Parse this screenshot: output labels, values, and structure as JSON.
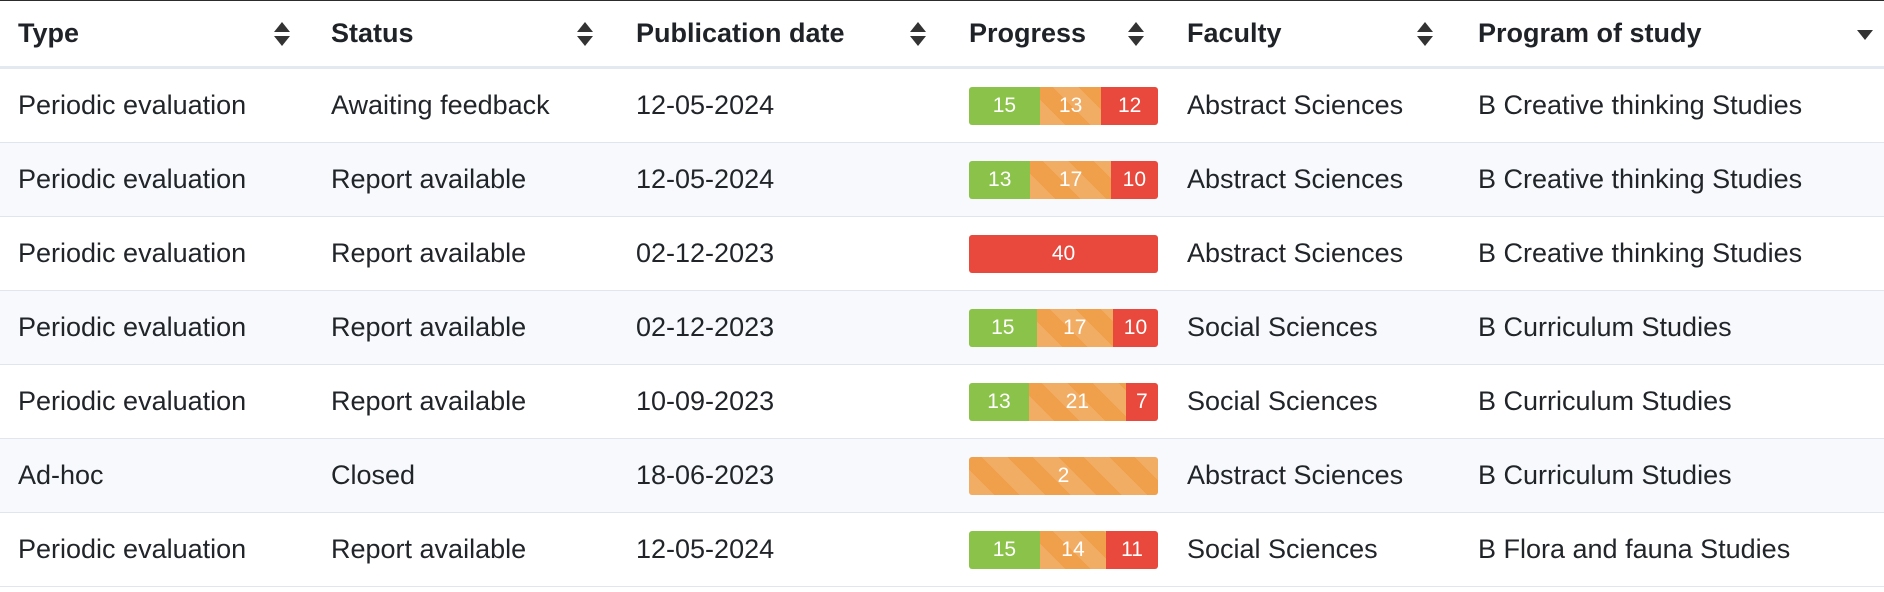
{
  "table": {
    "columns": [
      {
        "label": "Type",
        "sort": "both"
      },
      {
        "label": "Status",
        "sort": "both"
      },
      {
        "label": "Publication date",
        "sort": "both"
      },
      {
        "label": "Progress",
        "sort": "both"
      },
      {
        "label": "Faculty",
        "sort": "both"
      },
      {
        "label": "Program of study",
        "sort": "desc"
      }
    ],
    "rows": [
      {
        "type": "Periodic evaluation",
        "status": "Awaiting feedback",
        "date": "12-05-2024",
        "progress": {
          "green": 15,
          "orange": 13,
          "red": 12
        },
        "faculty": "Abstract Sciences",
        "program": "B Creative thinking Studies"
      },
      {
        "type": "Periodic evaluation",
        "status": "Report available",
        "date": "12-05-2024",
        "progress": {
          "green": 13,
          "orange": 17,
          "red": 10
        },
        "faculty": "Abstract Sciences",
        "program": "B Creative thinking Studies"
      },
      {
        "type": "Periodic evaluation",
        "status": "Report available",
        "date": "02-12-2023",
        "progress": {
          "green": 0,
          "orange": 0,
          "red": 40
        },
        "faculty": "Abstract Sciences",
        "program": "B Creative thinking Studies"
      },
      {
        "type": "Periodic evaluation",
        "status": "Report available",
        "date": "02-12-2023",
        "progress": {
          "green": 15,
          "orange": 17,
          "red": 10
        },
        "faculty": "Social Sciences",
        "program": "B Curriculum Studies"
      },
      {
        "type": "Periodic evaluation",
        "status": "Report available",
        "date": "10-09-2023",
        "progress": {
          "green": 13,
          "orange": 21,
          "red": 7
        },
        "faculty": "Social Sciences",
        "program": "B Curriculum Studies"
      },
      {
        "type": "Ad-hoc",
        "status": "Closed",
        "date": "18-06-2023",
        "progress": {
          "green": 0,
          "orange": 2,
          "red": 0
        },
        "faculty": "Abstract Sciences",
        "program": "B Curriculum Studies"
      },
      {
        "type": "Periodic evaluation",
        "status": "Report available",
        "date": "12-05-2024",
        "progress": {
          "green": 15,
          "orange": 14,
          "red": 11
        },
        "faculty": "Social Sciences",
        "program": "B Flora and fauna Studies"
      }
    ]
  },
  "colors": {
    "green": "#8bc34a",
    "orange": "#f0a04b",
    "red": "#e8493c"
  },
  "icons": {
    "sort_both": "sort-both-icon",
    "sort_desc": "sort-desc-icon"
  }
}
